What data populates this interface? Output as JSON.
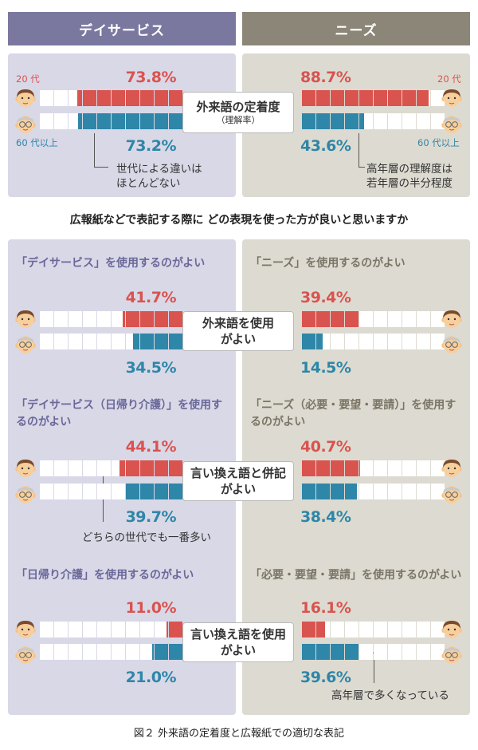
{
  "header": {
    "left_label": "デイサービス",
    "right_label": "ニーズ",
    "left_color": "#7b789f",
    "right_color": "#8b8677"
  },
  "colors": {
    "young": "#d9534f",
    "old": "#2e86a8",
    "empty_cell": "#ffffff",
    "left_panel": "#d9d8e7",
    "right_panel": "#dddbd1"
  },
  "legend": {
    "young_label": "20 代",
    "old_label": "60 代以上"
  },
  "top": {
    "center_label": "外来語の定着度",
    "center_sub": "（理解率）",
    "left_note": "世代による違いは\nほとんどない",
    "right_note": "高年層の理解度は\n若年層の半分程度"
  },
  "question": "広報紙などで表記する際に どの表現を使った方が良いと思いますか",
  "sections": [
    {
      "center_label": "外来語を使用\nがよい",
      "left_label": "「デイサービス」を使用するのがよい",
      "right_label": "「ニーズ」を使用するのがよい",
      "left_note": "",
      "right_note": ""
    },
    {
      "center_label": "言い換え語と併記\nがよい",
      "left_label": "「デイサービス（日帰り介護）」を使用するのがよい",
      "right_label": "「ニーズ（必要・要望・要請）」を使用するのがよい",
      "left_note": "どちらの世代でも一番多い",
      "right_note": ""
    },
    {
      "center_label": "言い換え語を使用\nがよい",
      "left_label": "「日帰り介護」を使用するのがよい",
      "right_label": "「必要・要望・要請」を使用するのがよい",
      "left_note": "",
      "right_note": "高年層で多くなっている"
    }
  ],
  "caption": "図２ 外来語の定着度と広報紙での適切な表記",
  "chart_data": {
    "type": "bar",
    "units": "%",
    "groups": [
      {
        "category": "外来語の定着度（理解率）",
        "series": [
          {
            "name": "20 代",
            "term": "デイサービス",
            "value": 73.8,
            "label": "73.8%"
          },
          {
            "name": "60 代以上",
            "term": "デイサービス",
            "value": 73.2,
            "label": "73.2%"
          },
          {
            "name": "20 代",
            "term": "ニーズ",
            "value": 88.7,
            "label": "88.7%"
          },
          {
            "name": "60 代以上",
            "term": "ニーズ",
            "value": 43.6,
            "label": "43.6%"
          }
        ]
      },
      {
        "category": "外来語を使用がよい",
        "series": [
          {
            "name": "20 代",
            "term": "デイサービス",
            "value": 41.7,
            "label": "41.7%"
          },
          {
            "name": "60 代以上",
            "term": "デイサービス",
            "value": 34.5,
            "label": "34.5%"
          },
          {
            "name": "20 代",
            "term": "ニーズ",
            "value": 39.4,
            "label": "39.4%"
          },
          {
            "name": "60 代以上",
            "term": "ニーズ",
            "value": 14.5,
            "label": "14.5%"
          }
        ]
      },
      {
        "category": "言い換え語と併記がよい",
        "series": [
          {
            "name": "20 代",
            "term": "デイサービス",
            "value": 44.1,
            "label": "44.1%"
          },
          {
            "name": "60 代以上",
            "term": "デイサービス",
            "value": 39.7,
            "label": "39.7%"
          },
          {
            "name": "20 代",
            "term": "ニーズ",
            "value": 40.7,
            "label": "40.7%"
          },
          {
            "name": "60 代以上",
            "term": "ニーズ",
            "value": 38.4,
            "label": "38.4%"
          }
        ]
      },
      {
        "category": "言い換え語を使用がよい",
        "series": [
          {
            "name": "20 代",
            "term": "デイサービス",
            "value": 11.0,
            "label": "11.0%"
          },
          {
            "name": "60 代以上",
            "term": "デイサービス",
            "value": 21.0,
            "label": "21.0%"
          },
          {
            "name": "20 代",
            "term": "ニーズ",
            "value": 16.1,
            "label": "16.1%"
          },
          {
            "name": "60 代以上",
            "term": "ニーズ",
            "value": 39.6,
            "label": "39.6%"
          }
        ]
      }
    ],
    "scale_max": 100,
    "cells_per_bar": 10
  }
}
